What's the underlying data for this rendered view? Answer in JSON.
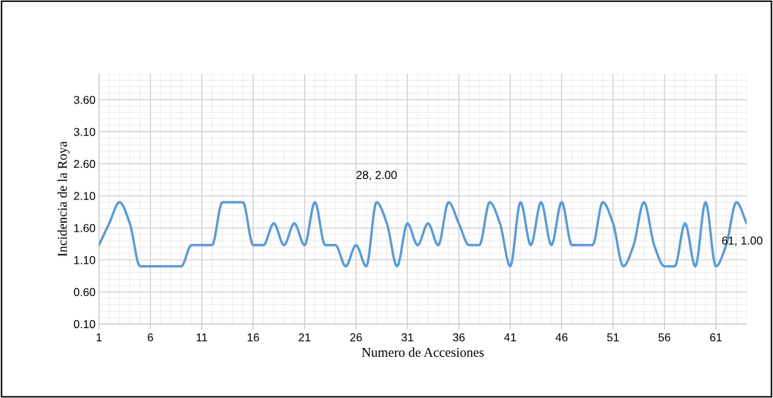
{
  "chart_data": {
    "type": "line",
    "xlabel": "Numero de Accesiones",
    "ylabel": "Incidencia de la Roya",
    "x": [
      1,
      2,
      3,
      4,
      5,
      6,
      7,
      8,
      9,
      10,
      11,
      12,
      13,
      14,
      15,
      16,
      17,
      18,
      19,
      20,
      21,
      22,
      23,
      24,
      25,
      26,
      27,
      28,
      29,
      30,
      31,
      32,
      33,
      34,
      35,
      36,
      37,
      38,
      39,
      40,
      41,
      42,
      43,
      44,
      45,
      46,
      47,
      48,
      49,
      50,
      51,
      52,
      53,
      54,
      55,
      56,
      57,
      58,
      59,
      60,
      61,
      62,
      63,
      64
    ],
    "series": [
      {
        "color": "#5b9bd5",
        "values": [
          1.33,
          1.67,
          2.0,
          1.67,
          1.0,
          1.0,
          1.0,
          1.0,
          1.0,
          1.33,
          1.33,
          1.33,
          2.0,
          2.0,
          2.0,
          1.33,
          1.33,
          1.67,
          1.33,
          1.67,
          1.33,
          2.0,
          1.33,
          1.33,
          1.0,
          1.33,
          1.0,
          2.0,
          1.67,
          1.0,
          1.67,
          1.33,
          1.67,
          1.33,
          2.0,
          1.67,
          1.33,
          1.33,
          2.0,
          1.67,
          1.0,
          2.0,
          1.33,
          2.0,
          1.33,
          2.0,
          1.33,
          1.33,
          1.33,
          2.0,
          1.67,
          1.0,
          1.33,
          2.0,
          1.33,
          1.0,
          1.0,
          1.67,
          1.0,
          2.0,
          1.0,
          1.33,
          2.0,
          1.67
        ]
      }
    ],
    "xlim": [
      1,
      64
    ],
    "xticks": [
      1,
      6,
      11,
      16,
      21,
      26,
      31,
      36,
      41,
      46,
      51,
      56,
      61
    ],
    "ylim": [
      0.1,
      4.0
    ],
    "yticks": [
      {
        "value": 0.1,
        "label": "0.10"
      },
      {
        "value": 0.6,
        "label": "0.60"
      },
      {
        "value": 1.1,
        "label": "1.10"
      },
      {
        "value": 1.6,
        "label": "1.60"
      },
      {
        "value": 2.1,
        "label": "2.10"
      },
      {
        "value": 2.6,
        "label": "2.60"
      },
      {
        "value": 3.1,
        "label": "3.10"
      },
      {
        "value": 3.6,
        "label": "3.60"
      }
    ],
    "annotations": [
      {
        "text": "28, 2.00",
        "x": 28,
        "y": 2.0
      },
      {
        "text": "61, 1.00",
        "x": 61,
        "y": 1.0
      }
    ],
    "grid": true,
    "legend": false,
    "marker": "none",
    "line_style": "solid"
  }
}
